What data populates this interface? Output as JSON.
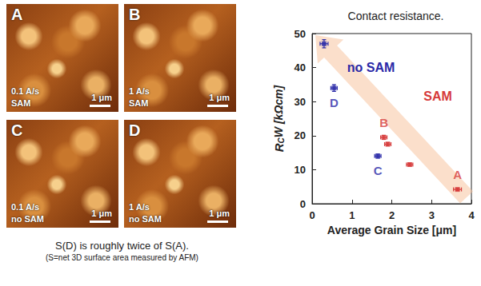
{
  "panels": [
    {
      "label": "A",
      "rate": "0.1 A/s",
      "treatment": "SAM",
      "scale_bar": "1 μm"
    },
    {
      "label": "B",
      "rate": "1 A/s",
      "treatment": "SAM",
      "scale_bar": "1 μm"
    },
    {
      "label": "C",
      "rate": "0.1 A/s",
      "treatment": "no SAM",
      "scale_bar": "1 μm"
    },
    {
      "label": "D",
      "rate": "1 A/s",
      "treatment": "no SAM",
      "scale_bar": "1 μm"
    }
  ],
  "caption": {
    "main": "S(D) is roughly twice of S(A).",
    "note": "(S=net 3D surface area measured by AFM)"
  },
  "chart_data": {
    "type": "scatter",
    "title": "Contact resistance.",
    "xlabel": "Average Grain Size [μm]",
    "ylabel": {
      "main": "R",
      "sub": "C",
      "rest": "W [kΩcm]"
    },
    "xlim": [
      0,
      4
    ],
    "xticks": [
      0,
      1,
      2,
      3,
      4
    ],
    "ylim": [
      0,
      50
    ],
    "yticks": [
      0,
      10,
      20,
      30,
      40,
      50
    ],
    "grid": false,
    "marker": "square",
    "series": [
      {
        "name": "no SAM",
        "color": "#2a2aa8",
        "x": [
          0.3,
          0.55,
          1.65
        ],
        "values": [
          47,
          34,
          14
        ],
        "x_err": [
          0.1,
          0.08,
          0.08
        ],
        "y_err": [
          1.2,
          1.0,
          0.6
        ],
        "point_labels": [
          null,
          "D",
          "C"
        ]
      },
      {
        "name": "SAM",
        "color": "#d63a3a",
        "x": [
          1.8,
          1.9,
          2.45,
          3.65
        ],
        "values": [
          19.5,
          17.5,
          11.5,
          4.2
        ],
        "x_err": [
          0.08,
          0.08,
          0.08,
          0.1
        ],
        "y_err": [
          0.6,
          0.5,
          0.4,
          0.3
        ],
        "point_labels": [
          "B",
          null,
          null,
          "A"
        ]
      }
    ]
  }
}
